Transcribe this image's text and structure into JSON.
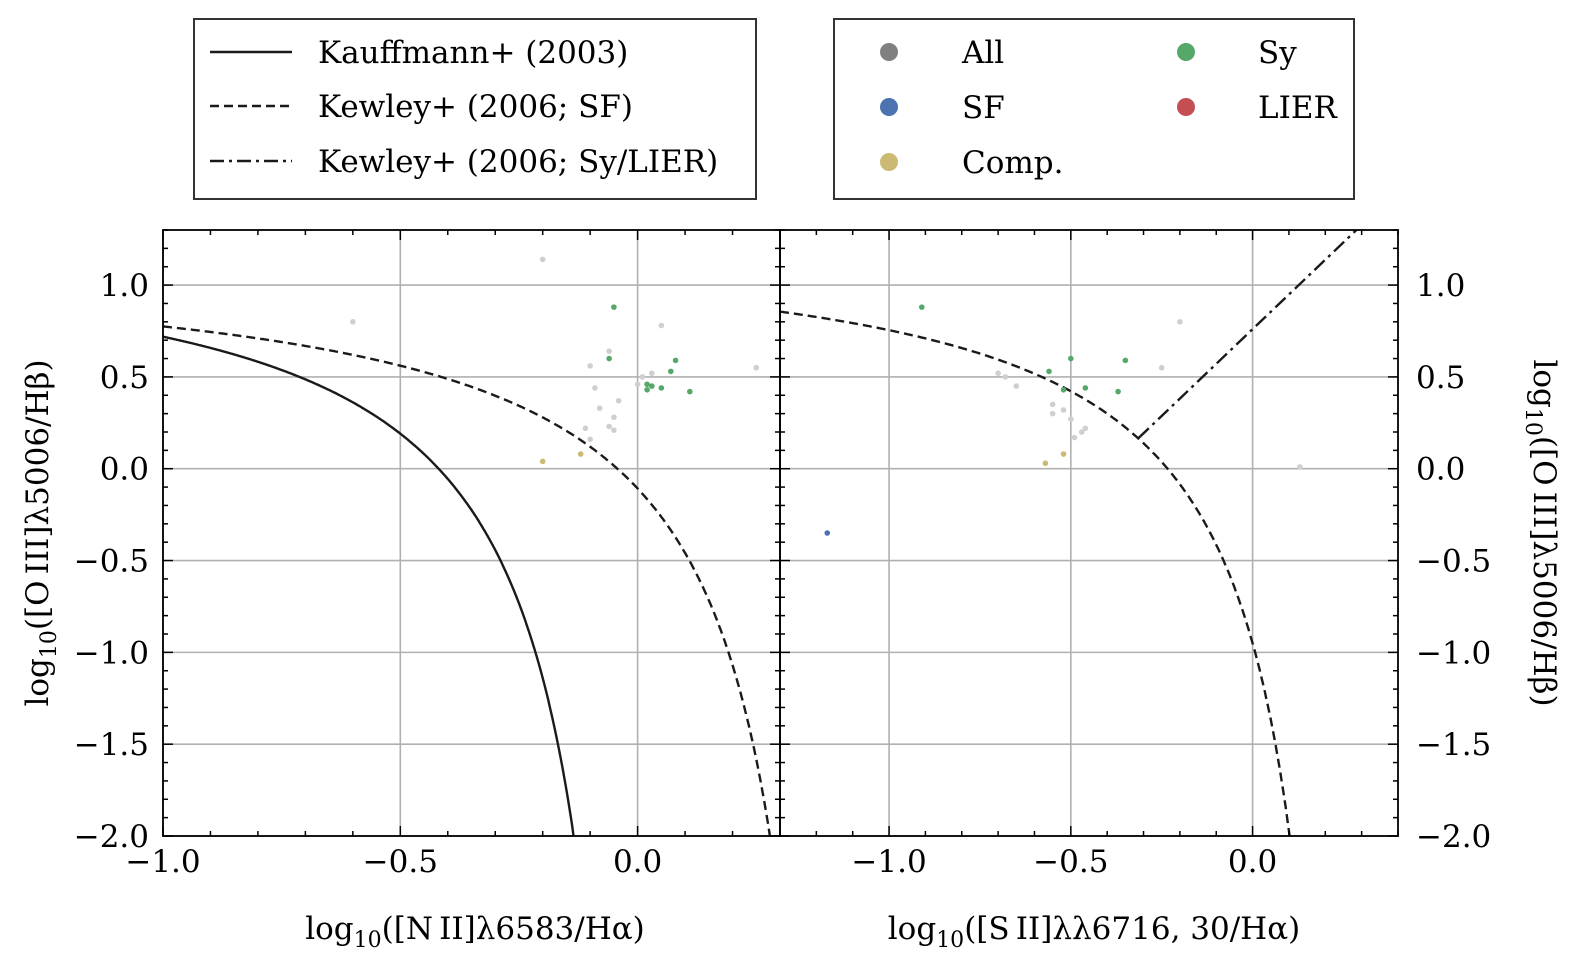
{
  "chart_data": [
    {
      "type": "scatter",
      "panel": "NII",
      "xlabel": {
        "pre": "log",
        "sub": "10",
        "post": "([N II]λ6583/Hα)"
      },
      "ylabel": {
        "pre": "log",
        "sub": "10",
        "post": "([O III]λ5006/Hβ)"
      },
      "xlim": [
        -1.0,
        0.3
      ],
      "ylim": [
        -2.0,
        1.3
      ],
      "xticks": [
        {
          "v": -1.0,
          "label": "−1.0"
        },
        {
          "v": -0.5,
          "label": "−0.5"
        },
        {
          "v": 0.0,
          "label": "0.0"
        }
      ],
      "yticks": [
        {
          "v": 1.0,
          "label": "1.0"
        },
        {
          "v": 0.5,
          "label": "0.5"
        },
        {
          "v": 0.0,
          "label": "0.0"
        },
        {
          "v": -0.5,
          "label": "−0.5"
        },
        {
          "v": -1.0,
          "label": "−1.0"
        },
        {
          "v": -1.5,
          "label": "−1.5"
        },
        {
          "v": -2.0,
          "label": "−2.0"
        }
      ],
      "grid": true,
      "lines": [
        {
          "name": "Kauffmann+ (2003)",
          "style": "solid",
          "formula": "kauffmann"
        },
        {
          "name": "Kewley+ (2006; SF)",
          "style": "dashed",
          "formula": "kewley_n2"
        }
      ],
      "series": [
        {
          "name": "All",
          "color": "#cfcfcf",
          "points": [
            [
              -0.6,
              0.8
            ],
            [
              -0.2,
              1.14
            ],
            [
              -0.06,
              0.64
            ],
            [
              0.05,
              0.78
            ],
            [
              -0.1,
              0.56
            ],
            [
              -0.09,
              0.44
            ],
            [
              -0.08,
              0.33
            ],
            [
              -0.05,
              0.28
            ],
            [
              -0.04,
              0.37
            ],
            [
              -0.11,
              0.22
            ],
            [
              -0.1,
              0.16
            ],
            [
              -0.06,
              0.23
            ],
            [
              -0.05,
              0.21
            ],
            [
              0.0,
              0.46
            ],
            [
              0.01,
              0.5
            ],
            [
              0.03,
              0.52
            ],
            [
              0.25,
              0.55
            ]
          ]
        },
        {
          "name": "SF",
          "color": "#4c72b0",
          "points": []
        },
        {
          "name": "Comp.",
          "color": "#ccb974",
          "points": [
            [
              -0.2,
              0.04
            ],
            [
              -0.12,
              0.08
            ]
          ]
        },
        {
          "name": "Sy",
          "color": "#55a868",
          "points": [
            [
              -0.05,
              0.88
            ],
            [
              -0.06,
              0.6
            ],
            [
              0.02,
              0.46
            ],
            [
              0.03,
              0.45
            ],
            [
              0.05,
              0.44
            ],
            [
              0.02,
              0.43
            ],
            [
              0.07,
              0.53
            ],
            [
              0.08,
              0.59
            ],
            [
              0.11,
              0.42
            ]
          ]
        },
        {
          "name": "LIER",
          "color": "#c44e52",
          "points": []
        }
      ]
    },
    {
      "type": "scatter",
      "panel": "SII",
      "xlabel": {
        "pre": "log",
        "sub": "10",
        "post": "([S II]λλ6716, 30/Hα)"
      },
      "ylabel": {
        "pre": "log",
        "sub": "10",
        "post": "([O III]λ5006/Hβ)"
      },
      "xlim": [
        -1.3,
        0.4
      ],
      "ylim": [
        -2.0,
        1.3
      ],
      "xticks": [
        {
          "v": -1.0,
          "label": "−1.0"
        },
        {
          "v": -0.5,
          "label": "−0.5"
        },
        {
          "v": 0.0,
          "label": "0.0"
        }
      ],
      "yticks": [
        {
          "v": 1.0,
          "label": "1.0"
        },
        {
          "v": 0.5,
          "label": "0.5"
        },
        {
          "v": 0.0,
          "label": "0.0"
        },
        {
          "v": -0.5,
          "label": "−0.5"
        },
        {
          "v": -1.0,
          "label": "−1.0"
        },
        {
          "v": -1.5,
          "label": "−1.5"
        },
        {
          "v": -2.0,
          "label": "−2.0"
        }
      ],
      "grid": true,
      "lines": [
        {
          "name": "Kewley+ (2006; SF)",
          "style": "dashed",
          "formula": "kewley_s2"
        },
        {
          "name": "Kewley+ (2006; Sy/LIER)",
          "style": "dashdot",
          "formula": "kewley_s2_sylier"
        }
      ],
      "series": [
        {
          "name": "All",
          "color": "#cfcfcf",
          "points": [
            [
              -0.7,
              0.52
            ],
            [
              -0.68,
              0.5
            ],
            [
              -0.65,
              0.45
            ],
            [
              -0.55,
              0.35
            ],
            [
              -0.55,
              0.3
            ],
            [
              -0.52,
              0.32
            ],
            [
              -0.5,
              0.27
            ],
            [
              -0.49,
              0.17
            ],
            [
              -0.47,
              0.2
            ],
            [
              -0.46,
              0.22
            ],
            [
              -0.25,
              0.55
            ],
            [
              -0.2,
              0.8
            ],
            [
              0.13,
              0.01
            ]
          ]
        },
        {
          "name": "SF",
          "color": "#4c72b0",
          "points": [
            [
              -1.17,
              -0.35
            ]
          ]
        },
        {
          "name": "Comp.",
          "color": "#ccb974",
          "points": [
            [
              -0.57,
              0.03
            ],
            [
              -0.52,
              0.08
            ]
          ]
        },
        {
          "name": "Sy",
          "color": "#55a868",
          "points": [
            [
              -0.91,
              0.88
            ],
            [
              -0.5,
              0.6
            ],
            [
              -0.56,
              0.53
            ],
            [
              -0.52,
              0.43
            ],
            [
              -0.46,
              0.44
            ],
            [
              -0.37,
              0.42
            ],
            [
              -0.35,
              0.59
            ]
          ]
        },
        {
          "name": "LIER",
          "color": "#c44e52",
          "points": []
        }
      ]
    }
  ],
  "legend_lines": {
    "items": [
      {
        "label": "Kauffmann+ (2003)",
        "style": "solid"
      },
      {
        "label": "Kewley+ (2006; SF)",
        "style": "dashed"
      },
      {
        "label": "Kewley+ (2006; Sy/LIER)",
        "style": "dashdot"
      }
    ]
  },
  "legend_points": {
    "items": [
      {
        "label": "All",
        "color": "#808080"
      },
      {
        "label": "SF",
        "color": "#4c72b0"
      },
      {
        "label": "Comp.",
        "color": "#ccb974"
      },
      {
        "label": "Sy",
        "color": "#55a868"
      },
      {
        "label": "LIER",
        "color": "#c44e52"
      }
    ]
  }
}
